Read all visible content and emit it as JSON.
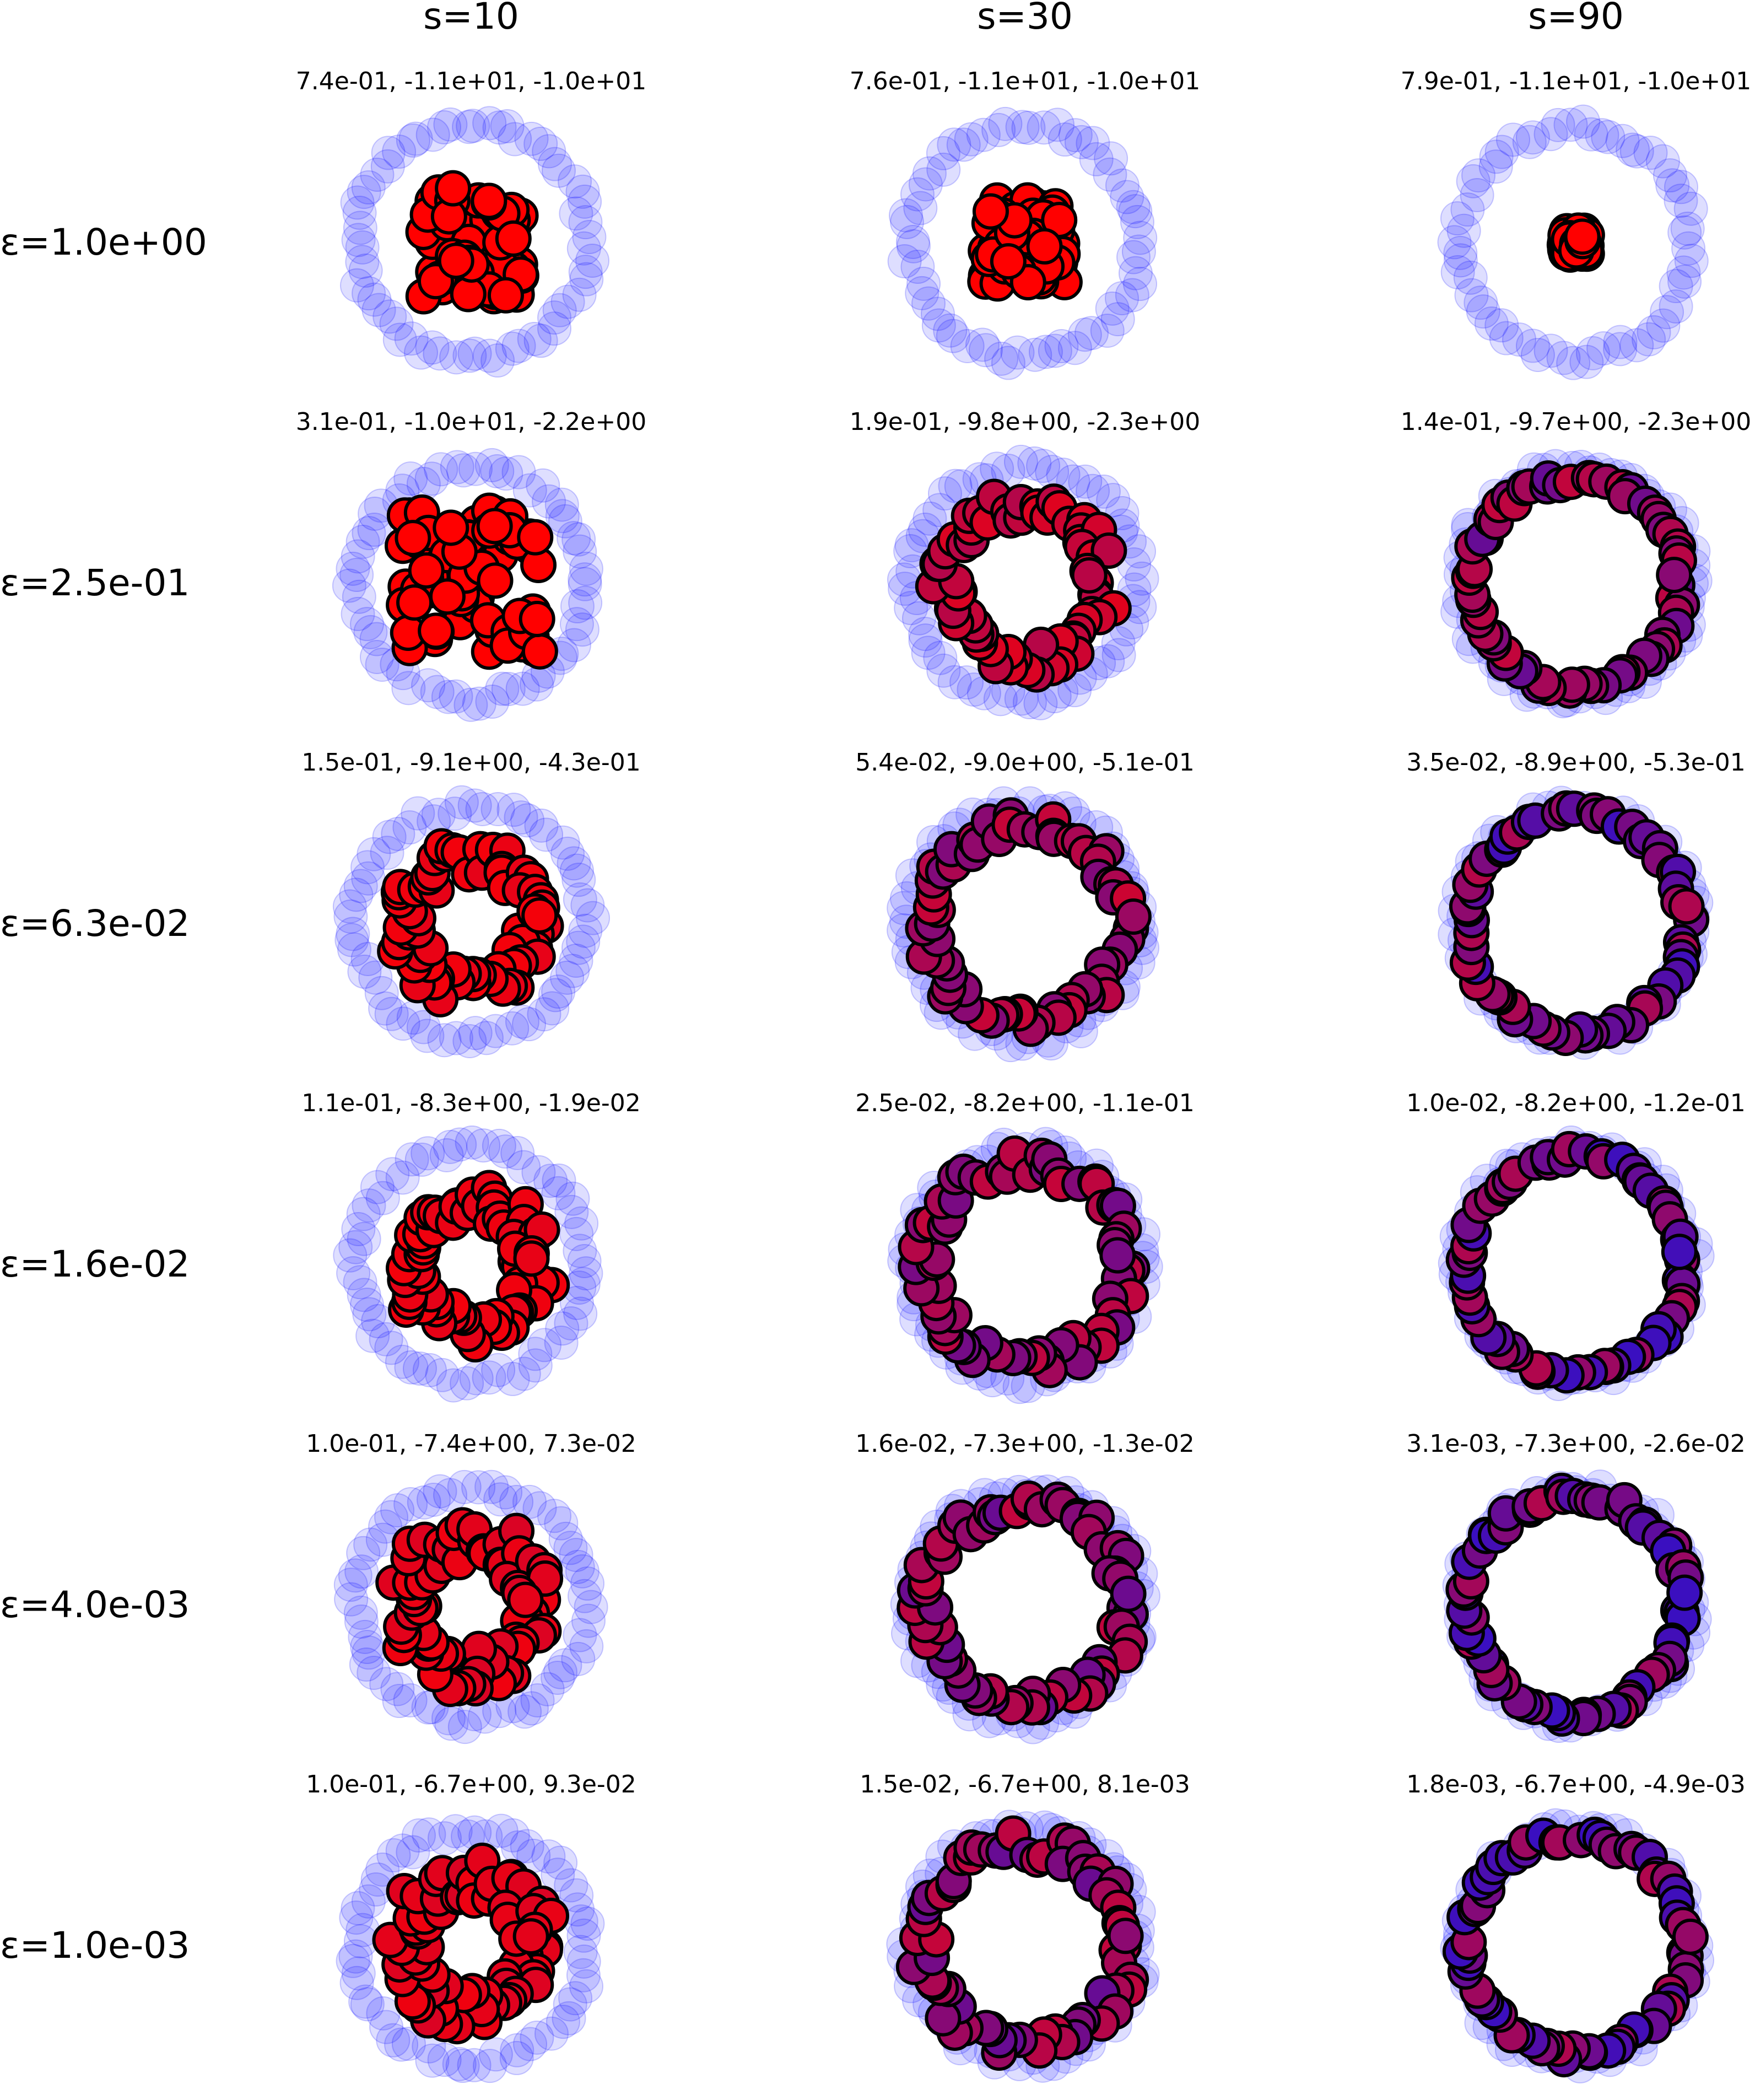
{
  "chart_data": {
    "type": "scatter",
    "columns": [
      "s=10",
      "s=30",
      "s=90"
    ],
    "rows": [
      "ε=1.0e+00",
      "ε=2.5e-01",
      "ε=6.3e-02",
      "ε=1.6e-02",
      "ε=4.0e-03",
      "ε=1.0e-03"
    ],
    "colors": {
      "target": "#0000ff",
      "particle": "#ff0000",
      "outline": "#000000"
    },
    "target": {
      "shape": "ring",
      "center": [
        0,
        0
      ],
      "radius": 1.0,
      "n_points": 64
    },
    "panels": [
      [
        {
          "title": "7.4e-01, -1.1e+01, -1.0e+01",
          "particles": {
            "shape": "square",
            "half_width": 0.45,
            "n_points": 70
          }
        },
        {
          "title": "7.6e-01, -1.1e+01, -1.0e+01",
          "particles": {
            "shape": "square",
            "half_width": 0.35,
            "n_points": 70
          }
        },
        {
          "title": "7.9e-01, -1.1e+01, -1.0e+01",
          "particles": {
            "shape": "square",
            "half_width": 0.1,
            "n_points": 70
          }
        }
      ],
      [
        {
          "title": "3.1e-01, -1.0e+01, -2.2e+00",
          "particles": {
            "shape": "square",
            "half_width": 0.6,
            "n_points": 70
          }
        },
        {
          "title": "1.9e-01, -9.8e+00, -2.3e+00",
          "particles": {
            "shape": "ring",
            "inner_radius": 0.55,
            "outer_radius": 0.8,
            "n_points": 64,
            "blend": 0.3
          }
        },
        {
          "title": "1.4e-01, -9.7e+00, -2.3e+00",
          "particles": {
            "shape": "ring",
            "inner_radius": 0.85,
            "outer_radius": 0.95,
            "n_points": 64,
            "blend": 0.6
          }
        }
      ],
      [
        {
          "title": "1.5e-01, -9.1e+00, -4.3e-01",
          "particles": {
            "shape": "ring",
            "inner_radius": 0.4,
            "outer_radius": 0.72,
            "n_points": 64,
            "blend": 0.1
          }
        },
        {
          "title": "5.4e-02, -9.0e+00, -5.1e-01",
          "particles": {
            "shape": "ring",
            "inner_radius": 0.75,
            "outer_radius": 0.95,
            "n_points": 64,
            "blend": 0.5
          }
        },
        {
          "title": "3.5e-02, -8.9e+00, -5.3e-01",
          "particles": {
            "shape": "ring",
            "inner_radius": 0.9,
            "outer_radius": 1.0,
            "n_points": 60,
            "blend": 0.75
          }
        }
      ],
      [
        {
          "title": "1.1e-01, -8.3e+00, -1.9e-02",
          "particles": {
            "shape": "ring",
            "inner_radius": 0.38,
            "outer_radius": 0.72,
            "n_points": 64,
            "blend": 0.1
          }
        },
        {
          "title": "2.5e-02, -8.2e+00, -1.1e-01",
          "particles": {
            "shape": "ring",
            "inner_radius": 0.75,
            "outer_radius": 0.97,
            "n_points": 64,
            "blend": 0.55
          }
        },
        {
          "title": "1.0e-02, -8.2e+00, -1.2e-01",
          "particles": {
            "shape": "ring",
            "inner_radius": 0.9,
            "outer_radius": 1.0,
            "n_points": 60,
            "blend": 0.8
          }
        }
      ],
      [
        {
          "title": "1.0e-01, -7.4e+00, 7.3e-02",
          "particles": {
            "shape": "ring",
            "inner_radius": 0.38,
            "outer_radius": 0.75,
            "n_points": 64,
            "blend": 0.15
          }
        },
        {
          "title": "1.6e-02, -7.3e+00, -1.3e-02",
          "particles": {
            "shape": "ring",
            "inner_radius": 0.75,
            "outer_radius": 0.98,
            "n_points": 64,
            "blend": 0.6
          }
        },
        {
          "title": "3.1e-03, -7.3e+00, -2.6e-02",
          "particles": {
            "shape": "ring",
            "inner_radius": 0.88,
            "outer_radius": 1.0,
            "n_points": 64,
            "blend": 0.8
          }
        }
      ],
      [
        {
          "title": "1.0e-01, -6.7e+00, 9.3e-02",
          "particles": {
            "shape": "ring",
            "inner_radius": 0.38,
            "outer_radius": 0.75,
            "n_points": 64,
            "blend": 0.15
          }
        },
        {
          "title": "1.5e-02, -6.7e+00, 8.1e-03",
          "particles": {
            "shape": "ring",
            "inner_radius": 0.75,
            "outer_radius": 0.98,
            "n_points": 64,
            "blend": 0.6
          }
        },
        {
          "title": "1.8e-03, -6.7e+00, -4.9e-03",
          "particles": {
            "shape": "ring",
            "inner_radius": 0.88,
            "outer_radius": 1.0,
            "n_points": 64,
            "blend": 0.8
          }
        }
      ]
    ]
  }
}
